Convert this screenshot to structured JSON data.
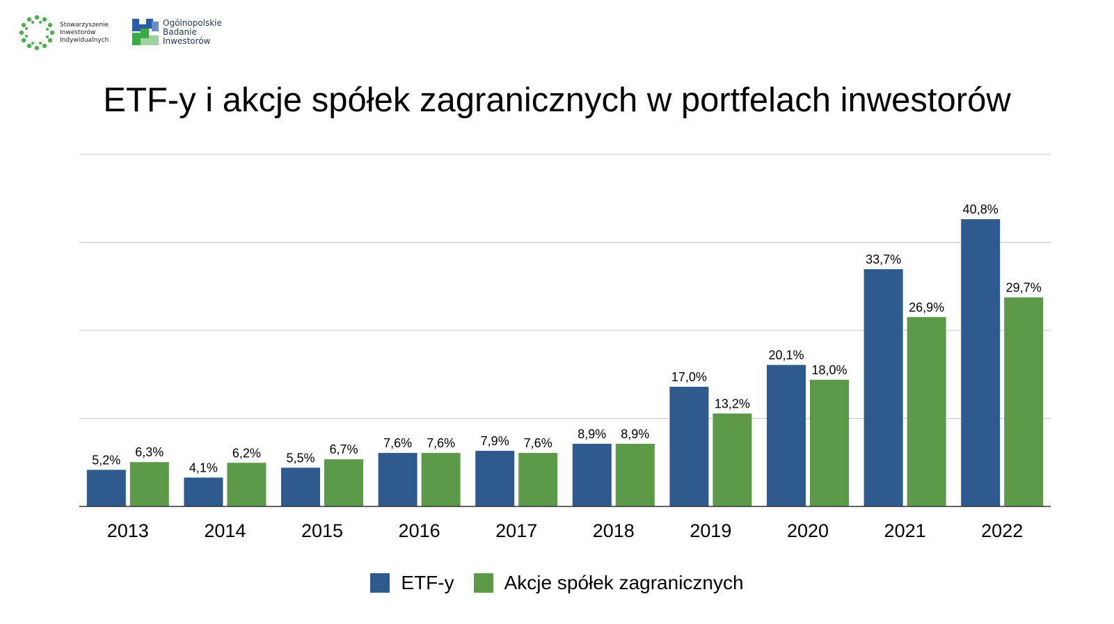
{
  "logos": {
    "sii": {
      "lines": [
        "Stowarzyszenie",
        "Inwestorów",
        "Indywidualnych"
      ],
      "color": "#4caf50"
    },
    "obi": {
      "lines": [
        "Ogólnopolskie",
        "Badanie",
        "Inwestorów"
      ],
      "colors": [
        "#2a5fa8",
        "#3aaa4a",
        "#9fd29f"
      ]
    }
  },
  "chart_data": {
    "type": "bar",
    "title": "ETF-y i akcje spółek zagranicznych w portfelach inwestorów",
    "categories": [
      "2013",
      "2014",
      "2015",
      "2016",
      "2017",
      "2018",
      "2019",
      "2020",
      "2021",
      "2022"
    ],
    "series": [
      {
        "name": "ETF-y",
        "color": "#2f5a8e",
        "values": [
          5.2,
          4.1,
          5.5,
          7.6,
          7.9,
          8.9,
          17.0,
          20.1,
          33.7,
          40.8
        ],
        "labels": [
          "5,2%",
          "4,1%",
          "5,5%",
          "7,6%",
          "7,9%",
          "8,9%",
          "17,0%",
          "20,1%",
          "33,7%",
          "40,8%"
        ]
      },
      {
        "name": "Akcje spółek zagranicznych",
        "color": "#5c9a4a",
        "values": [
          6.3,
          6.2,
          6.7,
          7.6,
          7.6,
          8.9,
          13.2,
          18.0,
          26.9,
          29.7
        ],
        "labels": [
          "6,3%",
          "6,2%",
          "6,7%",
          "7,6%",
          "7,6%",
          "8,9%",
          "13,2%",
          "18,0%",
          "26,9%",
          "29,7%"
        ]
      }
    ],
    "ylim": [
      0,
      50
    ],
    "grid": true,
    "gridlines": [
      0,
      12.5,
      25,
      37.5,
      50
    ],
    "legend": "bottom",
    "xlabel": "",
    "ylabel": ""
  }
}
